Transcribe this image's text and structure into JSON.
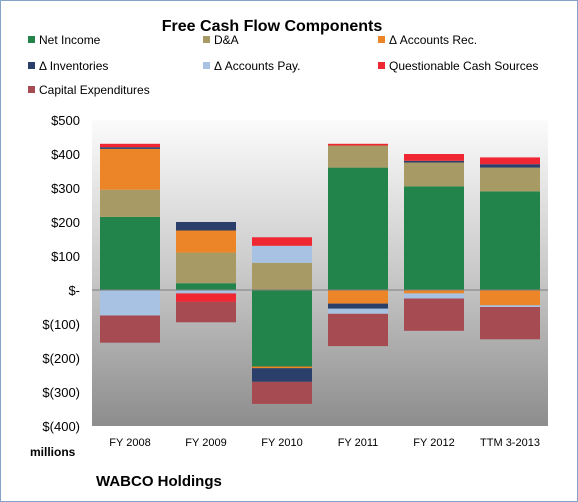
{
  "chart_data": {
    "type": "bar",
    "stacked": true,
    "title": "Free Cash Flow Components",
    "unit_label": "millions",
    "footer": "WABCO Holdings",
    "categories": [
      "FY 2008",
      "FY 2009",
      "FY 2010",
      "FY 2011",
      "FY 2012",
      "TTM 3-2013"
    ],
    "ylim": [
      -400,
      500
    ],
    "yticks": [
      {
        "value": 500,
        "label": "$500"
      },
      {
        "value": 400,
        "label": "$400"
      },
      {
        "value": 300,
        "label": "$300"
      },
      {
        "value": 200,
        "label": "$200"
      },
      {
        "value": 100,
        "label": "$100"
      },
      {
        "value": 0,
        "label": "$-"
      },
      {
        "value": -100,
        "label": "$(100)"
      },
      {
        "value": -200,
        "label": "$(200)"
      },
      {
        "value": -300,
        "label": "$(300)"
      },
      {
        "value": -400,
        "label": "$(400)"
      }
    ],
    "series": [
      {
        "name": "Net Income",
        "color": "#22844a",
        "values": [
          215,
          20,
          -225,
          360,
          305,
          290
        ]
      },
      {
        "name": "D&A",
        "color": "#a89a64",
        "values": [
          80,
          90,
          80,
          65,
          70,
          70
        ]
      },
      {
        "name": "Δ Accounts Rec.",
        "color": "#ec8527",
        "values": [
          120,
          65,
          -5,
          -40,
          -10,
          -45
        ]
      },
      {
        "name": "Δ Inventories",
        "color": "#2b3f6b",
        "values": [
          5,
          25,
          -40,
          -15,
          5,
          10
        ]
      },
      {
        "name": "Δ Accounts Pay.",
        "color": "#a7c2e2",
        "values": [
          -75,
          -10,
          50,
          -15,
          -15,
          -5
        ]
      },
      {
        "name": "Questionable Cash Sources",
        "color": "#ee2733",
        "values": [
          10,
          -25,
          25,
          5,
          20,
          20
        ]
      },
      {
        "name": "Capital Expenditures",
        "color": "#a74b52",
        "values": [
          -80,
          -60,
          -65,
          -95,
          -95,
          -95
        ]
      }
    ],
    "legend_position": "top",
    "grid": false
  }
}
